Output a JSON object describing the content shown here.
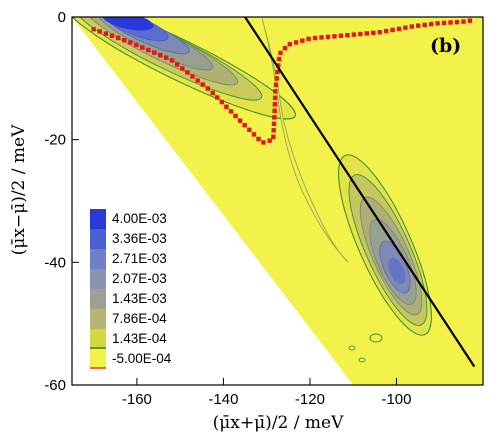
{
  "chart_data": {
    "type": "heatmap",
    "panel_label": "(b)",
    "xlabel": "(μ̄x+μ̄)/2  / meV",
    "ylabel": "(μ̄x−μ̄)/2  / meV",
    "xlim": [
      -175,
      -80
    ],
    "ylim": [
      -60,
      0
    ],
    "x_ticks": [
      -160,
      -140,
      -120,
      -100
    ],
    "y_ticks": [
      0,
      -20,
      -40,
      -60
    ],
    "background_color": "#f2f24a",
    "colorbar": {
      "levels": [
        "4.00E-03",
        "3.36E-03",
        "2.71E-03",
        "2.07E-03",
        "1.43E-03",
        "7.86E-04",
        "1.43E-04",
        "-5.00E-04"
      ],
      "colors": [
        "#2a3ad8",
        "#4a5fd2",
        "#6e80c6",
        "#8b94ae",
        "#9da094",
        "#b6b66e",
        "#d6d640",
        "#f2f24a"
      ]
    },
    "boundary_line": {
      "x": [
        -175,
        -110
      ],
      "y": [
        0,
        -60
      ]
    },
    "diagonal_line": {
      "x": [
        -135,
        -82
      ],
      "y": [
        0,
        -57
      ]
    },
    "red_dotted_curve": {
      "x": [
        -170,
        -162,
        -152,
        -143,
        -136,
        -131,
        -128.5,
        -128.2,
        -128,
        -127,
        -125,
        -120,
        -112,
        -104,
        -96,
        -90,
        -85,
        -82
      ],
      "y": [
        -2,
        -4,
        -7,
        -12,
        -17,
        -20.5,
        -20,
        -16,
        -12,
        -6,
        -4.5,
        -3.5,
        -3,
        -2.5,
        -1.5,
        -1,
        -0.8,
        -0.5
      ]
    },
    "density_peaks": [
      {
        "x": -158,
        "y": -2,
        "value": "4.00E-03"
      },
      {
        "x": -106,
        "y": -40,
        "value": "2.71E-03"
      }
    ]
  }
}
